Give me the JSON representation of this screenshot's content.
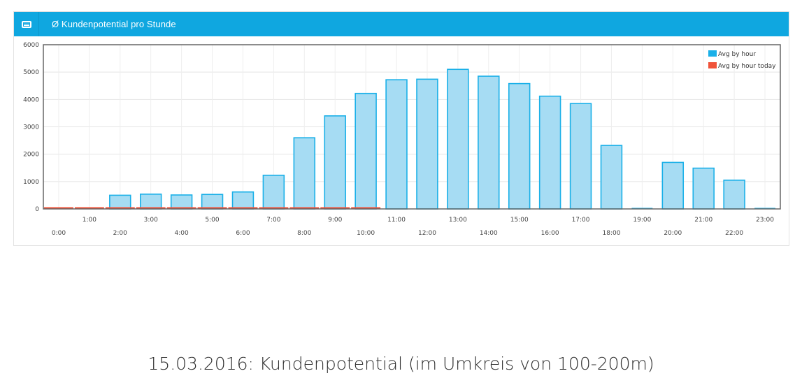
{
  "panel": {
    "title": "Ø Kundenpotential pro Stunde",
    "icon": "card-icon",
    "header_color": "#0fa7e0"
  },
  "caption": "15.03.2016:  Kundenpotential (im Umkreis von 100-200m)",
  "chart_data": {
    "type": "bar",
    "categories": [
      "0:00",
      "1:00",
      "2:00",
      "3:00",
      "4:00",
      "5:00",
      "6:00",
      "7:00",
      "8:00",
      "9:00",
      "10:00",
      "11:00",
      "12:00",
      "13:00",
      "14:00",
      "15:00",
      "16:00",
      "17:00",
      "18:00",
      "19:00",
      "20:00",
      "21:00",
      "22:00",
      "23:00"
    ],
    "series": [
      {
        "name": "Avg by hour",
        "color": "#1ab0e8",
        "fill": "#a6dcf3",
        "values": [
          0,
          0,
          500,
          540,
          510,
          530,
          620,
          1230,
          2600,
          3400,
          4220,
          4720,
          4740,
          5100,
          4850,
          4580,
          4120,
          3850,
          2320,
          0,
          1700,
          1490,
          1050,
          0
        ]
      },
      {
        "name": "Avg by hour today",
        "color": "#f0533a",
        "values": [
          0,
          0,
          0,
          0,
          0,
          0,
          0,
          0,
          0,
          0,
          0,
          null,
          null,
          null,
          null,
          null,
          null,
          null,
          null,
          null,
          null,
          null,
          null,
          null
        ]
      }
    ],
    "y_ticks": [
      0,
      1000,
      2000,
      3000,
      4000,
      5000,
      6000
    ],
    "ylim": [
      0,
      6000
    ],
    "grid": true,
    "legend": "top-right"
  }
}
